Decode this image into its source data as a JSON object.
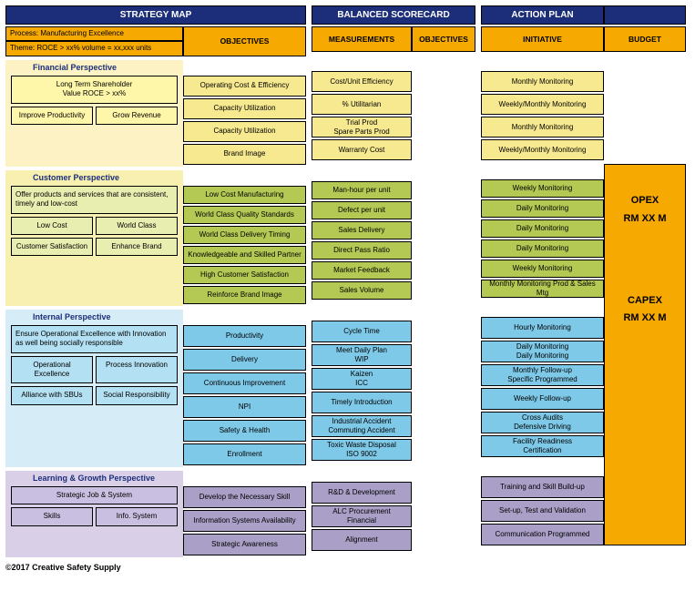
{
  "headers": {
    "strategy": "STRATEGY MAP",
    "scorecard": "BALANCED SCORECARD",
    "action": "ACTION PLAN",
    "objectives": "OBJECTIVES",
    "measurements": "MEASUREMENTS",
    "scorecard_objectives": "OBJECTIVES",
    "initiative": "INITIATIVE",
    "budget": "BUDGET",
    "process": "Process: Manufacturing Excellence",
    "theme": "Theme: ROCE > xx%  volume = xx,xxx units"
  },
  "colors": {
    "header_bg": "#1c2e7a",
    "orange": "#f6a900",
    "fin_light": "#fcf2c3",
    "fin_box": "#fef6a8",
    "fin_right": "#f7e98f",
    "cus_light": "#f7f0b0",
    "cus_box": "#e8edb0",
    "cus_right": "#b4c953",
    "int_light": "#d6ecf7",
    "int_box": "#b3e0f2",
    "int_right": "#7fc9e8",
    "lea_light": "#d9d0e8",
    "lea_box": "#c9bfe0",
    "lea_right": "#a99fc7"
  },
  "perspectives": {
    "financial": {
      "title": "Financial Perspective",
      "main_box": "Long Term Shareholder\nValue ROCE > xx%",
      "sub_boxes": [
        "Improve Productivity",
        "Grow Revenue"
      ],
      "objectives": [
        "Operating Cost & Efficiency",
        "Capacity Utilization",
        "Capacity Utilization",
        "Brand Image"
      ],
      "measurements": [
        "Cost/Unit Efficiency",
        "% Utilitarian",
        "Trial Prod\nSpare Parts Prod",
        "Warranty Cost"
      ],
      "initiatives": [
        "Monthly Monitoring",
        "Weekly/Monthly Monitoring",
        "Monthly Monitoring",
        "Weekly/Monthly Monitoring"
      ]
    },
    "customer": {
      "title": "Customer Perspective",
      "main_box": "Offer products and services that are consistent, timely and low-cost",
      "sub_boxes": [
        "Low Cost",
        "World Class",
        "Customer Satisfaction",
        "Enhance Brand"
      ],
      "objectives": [
        "Low Cost Manufacturing",
        "World Class Quality Standards",
        "World Class Delivery Timing",
        "Knowledgeable and Skilled Partner",
        "High Customer Satisfaction",
        "Reinforce Brand Image"
      ],
      "measurements": [
        "Man-hour per unit",
        "Defect per unit",
        "Sales Delivery",
        "Direct Pass Ratio",
        "Market Feedback",
        "Sales Volume"
      ],
      "initiatives": [
        "Weekly Monitoring",
        "Daily Monitoring",
        "Daily Monitoring",
        "Daily Monitoring",
        "Weekly Monitoring",
        "Monthly Monitoring Prod & Sales Mtg"
      ]
    },
    "internal": {
      "title": "Internal Perspective",
      "main_box": "Ensure Operational Excellence with Innovation as well being socially responsible",
      "sub_boxes": [
        "Operational Excellence",
        "Process Innovation",
        "Alliance with SBUs",
        "Social Responsibility"
      ],
      "objectives": [
        "Productivity",
        "Delivery",
        "Continuous Improvement",
        "NPI",
        "Safety & Health",
        "Enrollment"
      ],
      "measurements": [
        "Cycle Time",
        "Meet Daily Plan\nWIP",
        "Kaizen\nICC",
        "Timely Introduction",
        "Industrial Accident\nCommuting Accident",
        "Toxic Waste Disposal\nISO 9002"
      ],
      "initiatives": [
        "Hourly Monitoring",
        "Daily Monitoring\nDaily Monitoring",
        "Monthly Follow-up\nSpecific Programmed",
        "Weekly Follow-up",
        "Cross Audits\nDefensive Driving",
        "Facility Readiness\nCertification"
      ]
    },
    "learning": {
      "title": "Learning & Growth Perspective",
      "main_box": "Strategic Job & System",
      "sub_boxes": [
        "Skills",
        "Info. System"
      ],
      "objectives": [
        "Develop the Necessary Skill",
        "Information Systems Availability",
        "Strategic Awareness"
      ],
      "measurements": [
        "R&D & Development",
        "ALC Procurement\nFinancial",
        "Alignment"
      ],
      "initiatives": [
        "Training and Skill Build-up",
        "Set-up, Test and Validation",
        "Communication Programmed"
      ]
    }
  },
  "budget": {
    "opex_label": "OPEX",
    "opex_value": "RM XX M",
    "capex_label": "CAPEX",
    "capex_value": "RM XX M"
  },
  "footer": "©2017 Creative Safety Supply"
}
